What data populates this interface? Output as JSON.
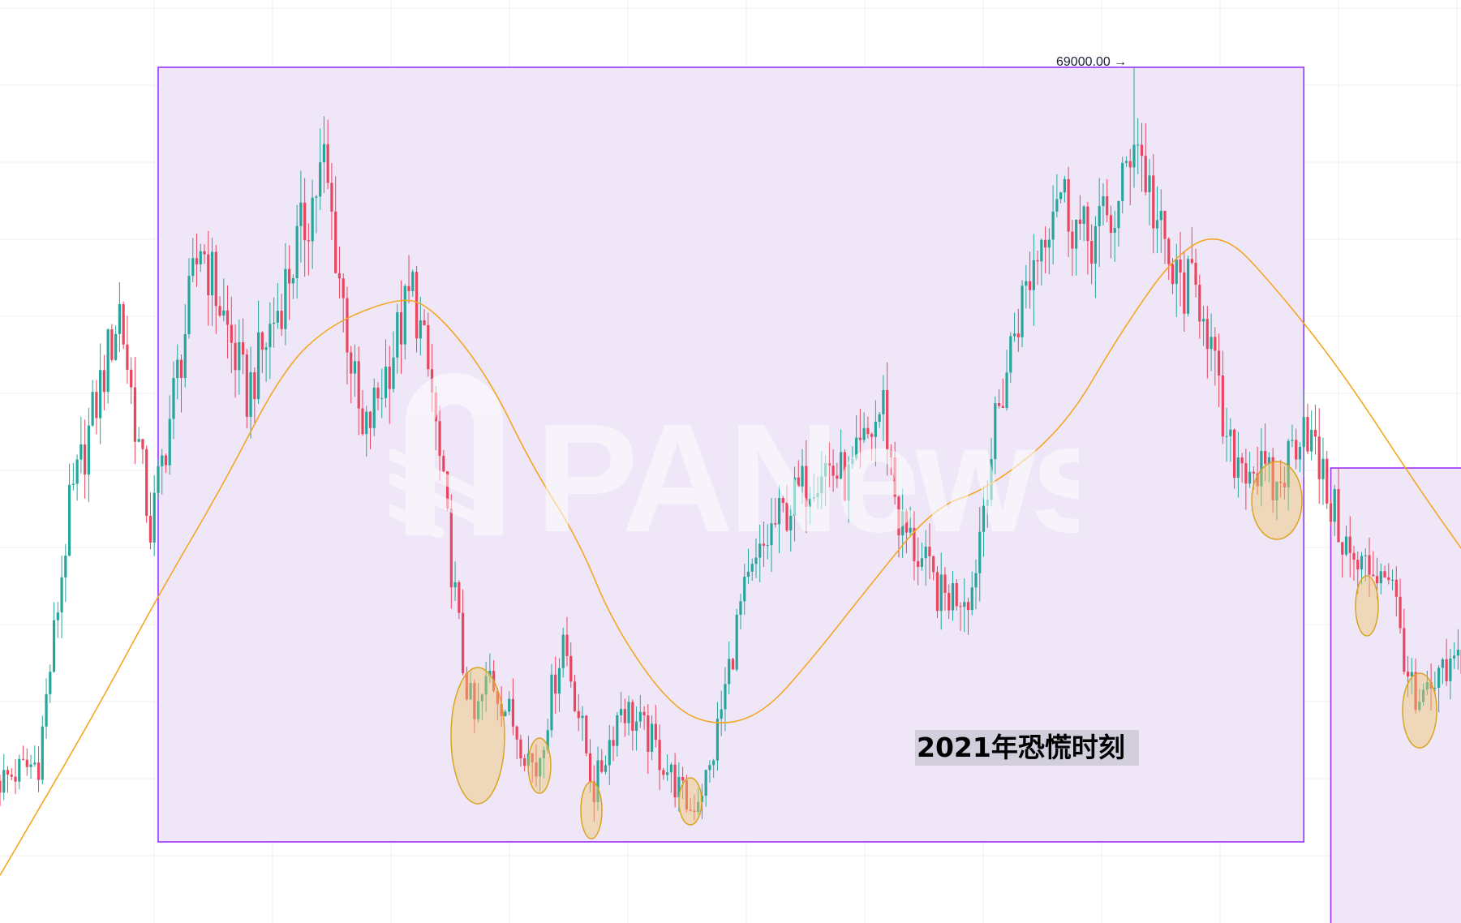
{
  "chart_data": {
    "type": "candlestick",
    "title": "",
    "xlabel": "",
    "ylabel": "",
    "grid": true,
    "ylim": [
      25000,
      72000
    ],
    "colors": {
      "up": "#26a69a",
      "down": "#e8455e",
      "ma": "#f5a623",
      "box_stroke": "#9b30ff",
      "box_fill": "#efe6f8",
      "grid": "#f0eef2"
    },
    "price_path": [
      [
        "2021-01-20",
        32000
      ],
      [
        "2021-01-30",
        33000
      ],
      [
        "2021-02-07",
        46000
      ],
      [
        "2021-02-20",
        56500
      ],
      [
        "2021-02-28",
        45000
      ],
      [
        "2021-03-13",
        60000
      ],
      [
        "2021-03-25",
        52000
      ],
      [
        "2021-04-02",
        56500
      ],
      [
        "2021-04-14",
        64000
      ],
      [
        "2021-04-24",
        49500
      ],
      [
        "2021-05-07",
        57500
      ],
      [
        "2021-05-12",
        52000
      ],
      [
        "2021-05-20",
        38000
      ],
      [
        "2021-05-23",
        35000
      ],
      [
        "2021-05-27",
        37500
      ],
      [
        "2021-06-08",
        32500
      ],
      [
        "2021-06-15",
        39500
      ],
      [
        "2021-06-23",
        31500
      ],
      [
        "2021-06-30",
        36000
      ],
      [
        "2021-07-08",
        34000
      ],
      [
        "2021-07-18",
        30500
      ],
      [
        "2021-07-23",
        32500
      ],
      [
        "2021-07-31",
        41000
      ],
      [
        "2021-08-08",
        45000
      ],
      [
        "2021-08-21",
        48500
      ],
      [
        "2021-08-28",
        47500
      ],
      [
        "2021-09-06",
        51500
      ],
      [
        "2021-09-10",
        45500
      ],
      [
        "2021-09-21",
        41500
      ],
      [
        "2021-09-29",
        42000
      ],
      [
        "2021-10-03",
        48000
      ],
      [
        "2021-10-10",
        55500
      ],
      [
        "2021-10-21",
        63000
      ],
      [
        "2021-10-28",
        60000
      ],
      [
        "2021-11-06",
        61500
      ],
      [
        "2021-11-10",
        66000
      ],
      [
        "2021-11-17",
        60000
      ],
      [
        "2021-11-20",
        58000
      ],
      [
        "2021-11-28",
        57000
      ],
      [
        "2021-12-04",
        49000
      ],
      [
        "2021-12-10",
        48500
      ],
      [
        "2021-12-17",
        47000
      ],
      [
        "2021-12-24",
        51000
      ],
      [
        "2021-12-29",
        47500
      ],
      [
        "2022-01-06",
        43000
      ],
      [
        "2022-01-15",
        43000
      ],
      [
        "2022-01-22",
        35500
      ],
      [
        "2022-02-03",
        38500
      ]
    ],
    "moving_average": [
      [
        "2021-01-20",
        27100
      ],
      [
        "2021-02-13",
        35300
      ],
      [
        "2021-03-02",
        41600
      ],
      [
        "2021-03-19",
        47400
      ],
      [
        "2021-04-03",
        53200
      ],
      [
        "2021-04-15",
        55600
      ],
      [
        "2021-05-02",
        57000
      ],
      [
        "2021-05-11",
        56800
      ],
      [
        "2021-05-26",
        53200
      ],
      [
        "2021-06-07",
        48300
      ],
      [
        "2021-06-19",
        44500
      ],
      [
        "2021-06-28",
        40100
      ],
      [
        "2021-07-13",
        35800
      ],
      [
        "2021-07-25",
        34800
      ],
      [
        "2021-08-06",
        35500
      ],
      [
        "2021-08-18",
        38200
      ],
      [
        "2021-09-02",
        42000
      ],
      [
        "2021-09-19",
        46200
      ],
      [
        "2021-10-03",
        47100
      ],
      [
        "2021-10-23",
        50300
      ],
      [
        "2021-11-06",
        55100
      ],
      [
        "2021-11-21",
        59400
      ],
      [
        "2021-12-03",
        60500
      ],
      [
        "2021-12-17",
        57500
      ],
      [
        "2022-01-03",
        53200
      ],
      [
        "2022-01-22",
        47400
      ],
      [
        "2022-02-03",
        44000
      ]
    ],
    "peak_price": 69000,
    "peak_date": "2021-11-10",
    "annotations": {
      "peak_label": "69000.00 →",
      "period_label": "2021年恐慌时刻",
      "highlight_box_2021": [
        "2021-03-02",
        "2021-12-24"
      ],
      "highlight_box_2022": [
        "2021-12-31",
        "2022-02-03"
      ]
    }
  },
  "watermark": "PANews"
}
